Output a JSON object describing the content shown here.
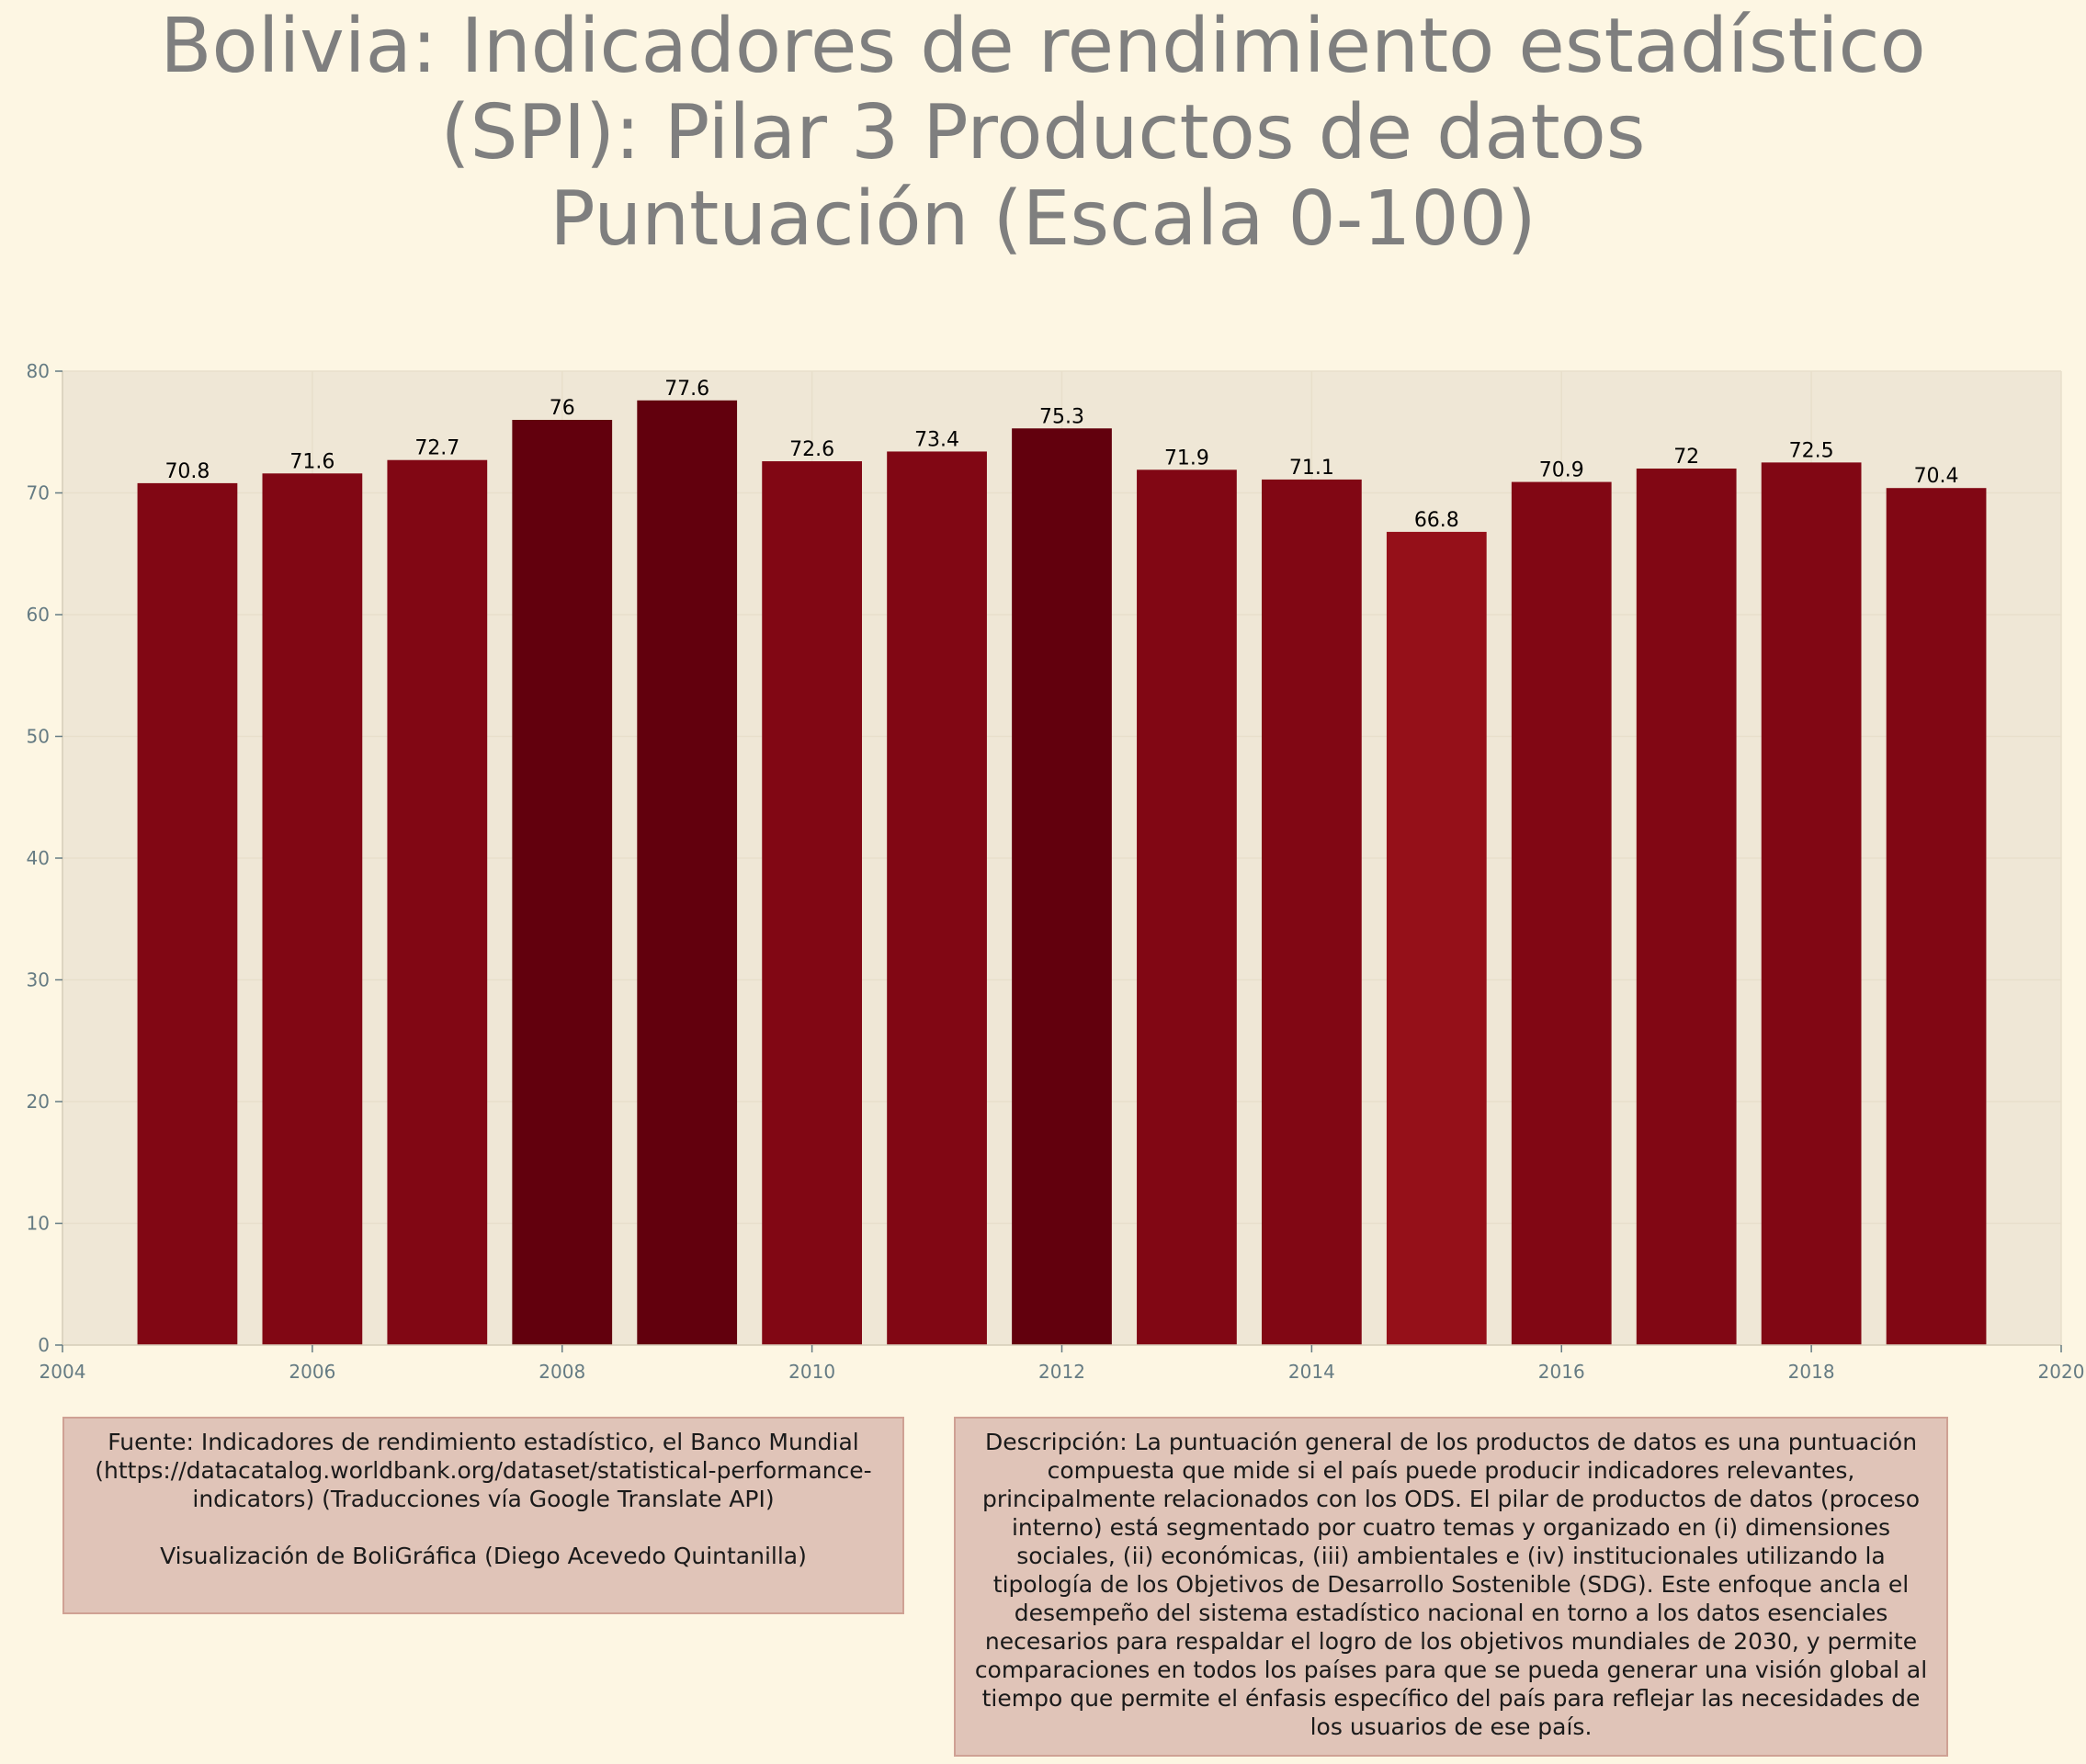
{
  "title": {
    "line1": "Bolivia:  Indicadores de rendimiento estadístico",
    "line2": "(SPI): Pilar 3 Productos de datos",
    "line3": "Puntuación (Escala 0-100)"
  },
  "chart_data": {
    "type": "bar",
    "title": "Bolivia:  Indicadores de rendimiento estadístico (SPI): Pilar 3 Productos de datos Puntuación (Escala 0-100)",
    "xlabel": "",
    "ylabel": "",
    "x": [
      2005,
      2006,
      2007,
      2008,
      2009,
      2010,
      2011,
      2012,
      2013,
      2014,
      2015,
      2016,
      2017,
      2018,
      2019
    ],
    "values": [
      70.8,
      71.6,
      72.7,
      76,
      77.6,
      72.6,
      73.4,
      75.3,
      71.9,
      71.1,
      66.8,
      70.9,
      72,
      72.5,
      70.4
    ],
    "value_labels": [
      "70.8",
      "71.6",
      "72.7",
      "76",
      "77.6",
      "72.6",
      "73.4",
      "75.3",
      "71.9",
      "71.1",
      "66.8",
      "70.9",
      "72",
      "72.5",
      "70.4"
    ],
    "xlim": [
      2004,
      2020
    ],
    "ylim": [
      0,
      80
    ],
    "x_ticks": [
      "2004",
      "2006",
      "2008",
      "2010",
      "2012",
      "2014",
      "2016",
      "2018",
      "2020"
    ],
    "y_ticks": [
      "0",
      "10",
      "20",
      "30",
      "40",
      "50",
      "60",
      "70",
      "80"
    ],
    "grid": true,
    "legend": "none",
    "colors": {
      "bar_low": "#951019",
      "bar_mid": "#810714",
      "bar_high": "#62000d",
      "plot_background": "#efe7d6",
      "page_background": "#fdf6e3",
      "tick_text": "#657b83",
      "value_text": "#000000",
      "title_text": "#7f7f7f"
    }
  },
  "source": {
    "text": "Fuente: Indicadores de rendimiento estadístico, el Banco Mundial (https://datacatalog.worldbank.org/dataset/statistical-performance-indicators) (Traducciones vía Google Translate API)",
    "credit": "Visualización de BoliGráfica (Diego Acevedo Quintanilla)"
  },
  "description": {
    "text": "Descripción: La puntuación general de los productos de datos es una puntuación compuesta que mide si el país puede producir indicadores relevantes, principalmente relacionados con los ODS. El pilar de productos de datos (proceso interno) está segmentado por cuatro temas y organizado en (i) dimensiones sociales, (ii) económicas, (iii) ambientales e (iv) institucionales utilizando la tipología de los Objetivos de Desarrollo Sostenible (SDG). Este enfoque ancla el desempeño del sistema estadístico nacional en torno a los datos esenciales necesarios para respaldar el logro de los objetivos mundiales de 2030, y permite comparaciones en todos los países para que se pueda generar una visión global al tiempo que permite el énfasis específico del país para reflejar las necesidades de los usuarios de ese país."
  }
}
